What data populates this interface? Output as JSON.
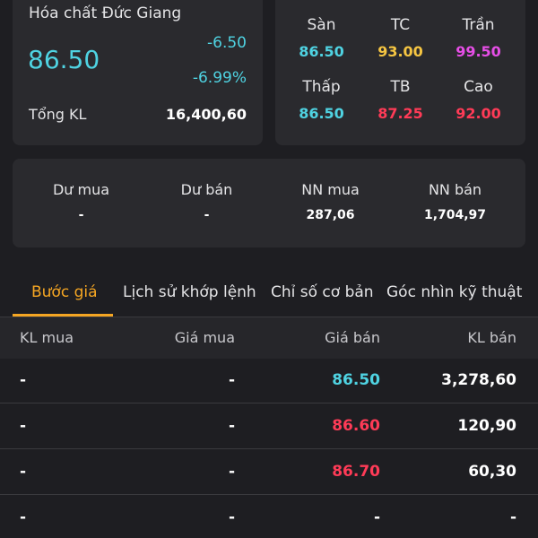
{
  "quote": {
    "name": "Hóa chất Đức Giang",
    "price": "86.50",
    "change": "-6.50",
    "change_pct": "-6.99%",
    "volume_label": "Tổng KL",
    "volume": "16,400,60"
  },
  "ref": [
    {
      "label": "Sàn",
      "value": "86.50",
      "color": "#4fd3e2"
    },
    {
      "label": "TC",
      "value": "93.00",
      "color": "#f5c542"
    },
    {
      "label": "Trần",
      "value": "99.50",
      "color": "#e64ee6"
    },
    {
      "label": "Thấp",
      "value": "86.50",
      "color": "#4fd3e2"
    },
    {
      "label": "TB",
      "value": "87.25",
      "color": "#ff3b57"
    },
    {
      "label": "Cao",
      "value": "92.00",
      "color": "#ff3b57"
    }
  ],
  "flow": [
    {
      "label": "Dư mua",
      "value": "-"
    },
    {
      "label": "Dư bán",
      "value": "-"
    },
    {
      "label": "NN mua",
      "value": "287,06"
    },
    {
      "label": "NN bán",
      "value": "1,704,97"
    }
  ],
  "tabs": [
    "Bước giá",
    "Lịch sử khớp lệnh",
    "Chỉ số cơ bản",
    "Góc nhìn kỹ thuật"
  ],
  "book_headers": [
    "KL mua",
    "Giá mua",
    "Giá bán",
    "KL bán"
  ],
  "book_rows": [
    {
      "bid_vol": "-",
      "bid": "-",
      "ask": "86.50",
      "ask_color": "#4fd3e2",
      "ask_vol": "3,278,60"
    },
    {
      "bid_vol": "-",
      "bid": "-",
      "ask": "86.60",
      "ask_color": "#ff3b57",
      "ask_vol": "120,90"
    },
    {
      "bid_vol": "-",
      "bid": "-",
      "ask": "86.70",
      "ask_color": "#ff3b57",
      "ask_vol": "60,30"
    },
    {
      "bid_vol": "-",
      "bid": "-",
      "ask": "-",
      "ask_color": "#ffffff",
      "ask_vol": "-"
    }
  ]
}
